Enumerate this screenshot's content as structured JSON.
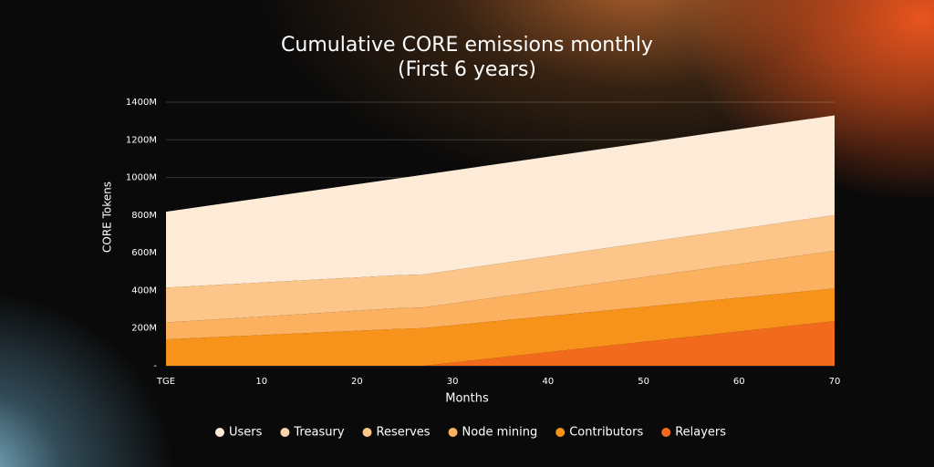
{
  "chart_data": {
    "type": "stacked_area",
    "title": "Cumulative CORE emissions monthly",
    "subtitle": "(First 6 years)",
    "x_label": "Months",
    "y_label": "CORE Tokens",
    "x": [
      0,
      24,
      27,
      70
    ],
    "xlim": [
      0,
      70
    ],
    "xticks": [
      {
        "value": 0,
        "label": "TGE"
      },
      10,
      20,
      30,
      40,
      50,
      60,
      70
    ],
    "ylim": [
      0,
      1400
    ],
    "yticks": [
      {
        "value": 0,
        "label": "-"
      },
      {
        "value": 200,
        "label": "200M"
      },
      {
        "value": 400,
        "label": "400M"
      },
      {
        "value": 600,
        "label": "600M"
      },
      {
        "value": 800,
        "label": "800M"
      },
      {
        "value": 1000,
        "label": "1000M"
      },
      {
        "value": 1200,
        "label": "1200M"
      },
      {
        "value": 1400,
        "label": "1400M"
      }
    ],
    "grid": true,
    "series": [
      {
        "name": "Users",
        "color": "#fdebd8",
        "values": [
          403,
          513,
          530,
          530
        ]
      },
      {
        "name": "Treasury",
        "color": "#fcd6ab",
        "values": [
          0,
          0,
          0,
          0
        ]
      },
      {
        "name": "Reserves",
        "color": "#fcc68a",
        "values": [
          185,
          175,
          175,
          190
        ]
      },
      {
        "name": "Node mining",
        "color": "#fbb160",
        "values": [
          90,
          110,
          110,
          200
        ]
      },
      {
        "name": "Contributors",
        "color": "#f7931a",
        "values": [
          140,
          195,
          200,
          173
        ]
      },
      {
        "name": "Relayers",
        "color": "#f26b1d",
        "values": [
          0,
          0,
          0,
          237
        ]
      }
    ]
  }
}
